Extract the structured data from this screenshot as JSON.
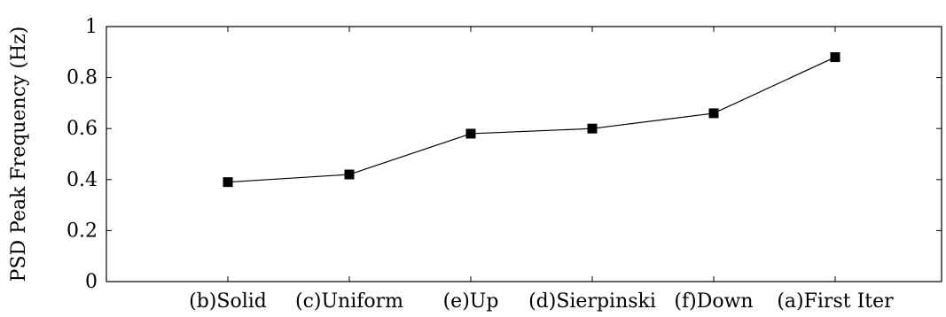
{
  "chart_data": {
    "type": "line",
    "title": "",
    "xlabel": "",
    "ylabel": "PSD Peak Frequency (Hz)",
    "categories": [
      "(b)Solid",
      "(c)Uniform",
      "(e)Up",
      "(d)Sierpinski",
      "(f)Down",
      "(a)First Iter"
    ],
    "series": [
      {
        "values": [
          0.39,
          0.42,
          0.58,
          0.6,
          0.66,
          0.88
        ]
      }
    ],
    "ylim": [
      0,
      1
    ],
    "yticks": [
      0,
      0.2,
      0.4,
      0.6,
      0.8,
      1
    ],
    "ytick_labels": [
      "0",
      "0.2",
      "0.4",
      "0.6",
      "0.8",
      "1"
    ],
    "grid": false,
    "marker": "square",
    "line_color": "#000000",
    "marker_color": "#000000"
  }
}
